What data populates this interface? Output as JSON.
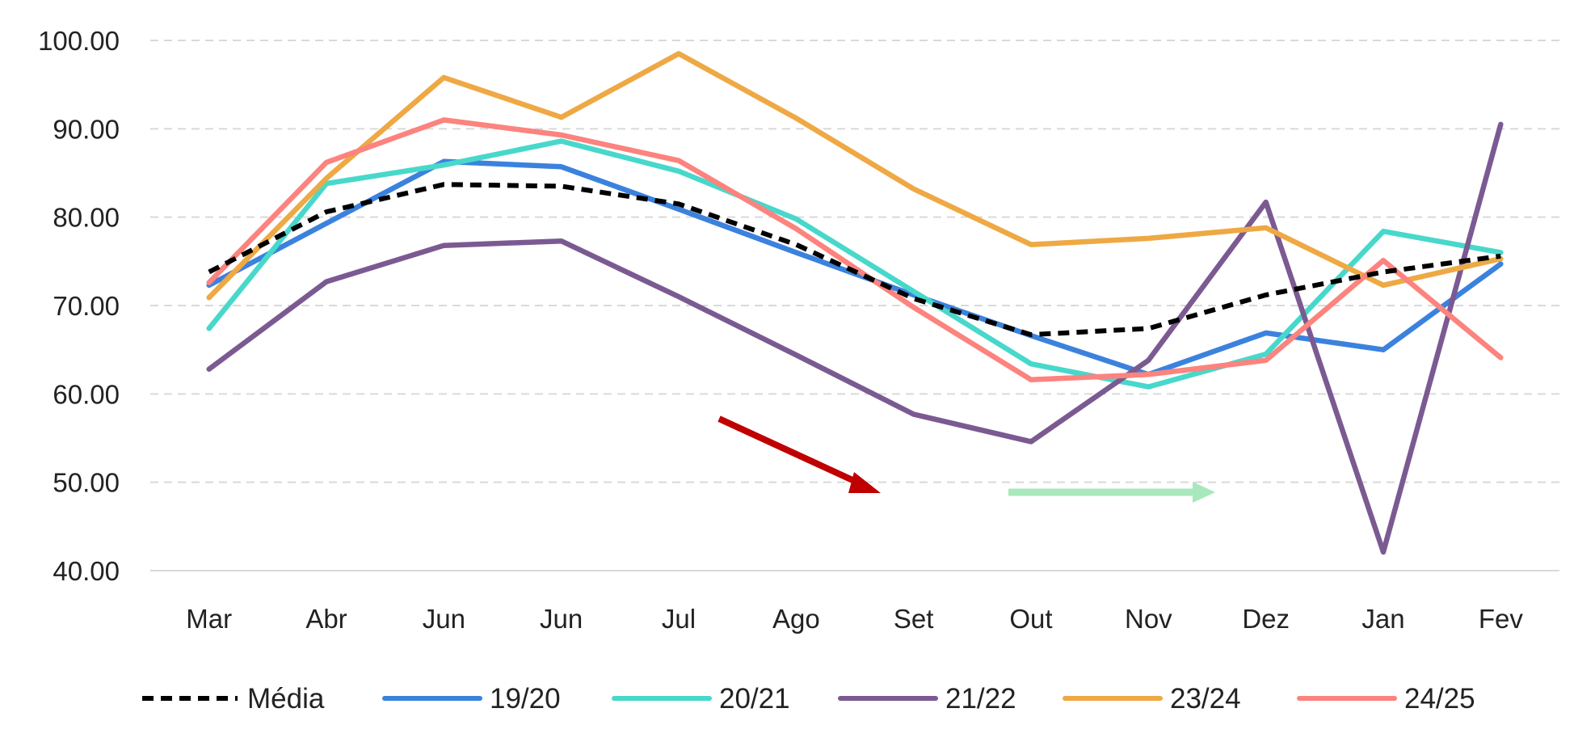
{
  "chart_data": {
    "type": "line",
    "categories": [
      "Mar",
      "Abr",
      "Jun",
      "Jun",
      "Jul",
      "Ago",
      "Set",
      "Out",
      "Nov",
      "Dez",
      "Jan",
      "Fev"
    ],
    "ylim": [
      40,
      100
    ],
    "yticks": [
      "40.00",
      "50.00",
      "60.00",
      "70.00",
      "80.00",
      "90.00",
      "100.00"
    ],
    "grid": true,
    "legend_position": "bottom",
    "series": [
      {
        "name": "Média",
        "color": "#000000",
        "dashed": true,
        "values": [
          73.8,
          80.6,
          83.7,
          83.5,
          81.5,
          76.9,
          70.8,
          66.7,
          67.4,
          71.2,
          73.8,
          75.6
        ]
      },
      {
        "name": "19/20",
        "color": "#3B82DE",
        "dashed": false,
        "values": [
          72.3,
          79.3,
          86.3,
          85.7,
          80.9,
          76.0,
          71.2,
          66.6,
          62.2,
          66.9,
          65.0,
          74.7
        ]
      },
      {
        "name": "20/21",
        "color": "#48D8CB",
        "dashed": false,
        "values": [
          67.4,
          83.8,
          85.9,
          88.6,
          85.2,
          79.8,
          71.6,
          63.4,
          60.8,
          64.5,
          78.4,
          76.0
        ]
      },
      {
        "name": "21/22",
        "color": "#7B5A92",
        "dashed": false,
        "values": [
          62.8,
          72.7,
          76.8,
          77.3,
          71.0,
          64.4,
          57.7,
          54.6,
          63.8,
          81.7,
          42.1,
          90.5
        ]
      },
      {
        "name": "23/24",
        "color": "#EEA944",
        "dashed": false,
        "values": [
          70.9,
          84.4,
          95.8,
          91.3,
          98.5,
          91.2,
          83.2,
          76.9,
          77.6,
          78.8,
          72.3,
          75.3
        ]
      },
      {
        "name": "24/25",
        "color": "#FC837E",
        "dashed": false,
        "values": [
          72.6,
          86.2,
          91.0,
          89.3,
          86.4,
          78.7,
          69.8,
          61.6,
          62.2,
          63.8,
          75.1,
          64.1
        ]
      }
    ],
    "annotations": [
      {
        "kind": "down-arrow",
        "color": "#C00000"
      },
      {
        "kind": "flat-arrow",
        "color": "#A8E8BC"
      }
    ]
  }
}
